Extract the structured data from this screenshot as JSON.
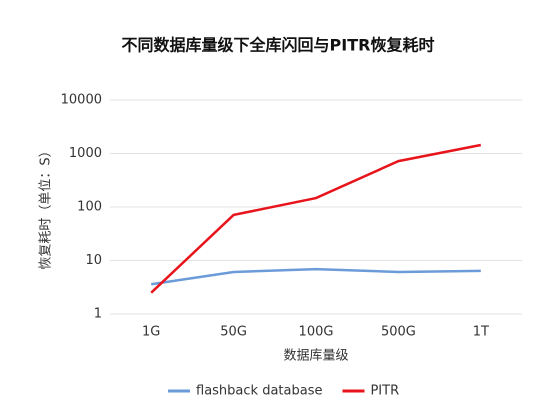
{
  "chart_data": {
    "type": "line",
    "title": "不同数据库量级下全库闪回与PITR恢复耗时",
    "x_label": "数据库量级",
    "y_label": "恢复耗时（单位：S）",
    "categories": [
      "1G",
      "50G",
      "100G",
      "500G",
      "1T"
    ],
    "series": [
      {
        "name": "flashback database",
        "color": "#6b9bd8",
        "values": [
          3.6,
          6.1,
          6.9,
          6.1,
          6.4
        ]
      },
      {
        "name": "PITR",
        "color": "#e8141c",
        "values": [
          2.5,
          71,
          147,
          720,
          1440
        ]
      }
    ],
    "y_scale": "log",
    "ylim": [
      1,
      10000
    ],
    "yticks": [
      1,
      10,
      100,
      1000,
      10000
    ],
    "grid": true,
    "legend": "bottom"
  }
}
